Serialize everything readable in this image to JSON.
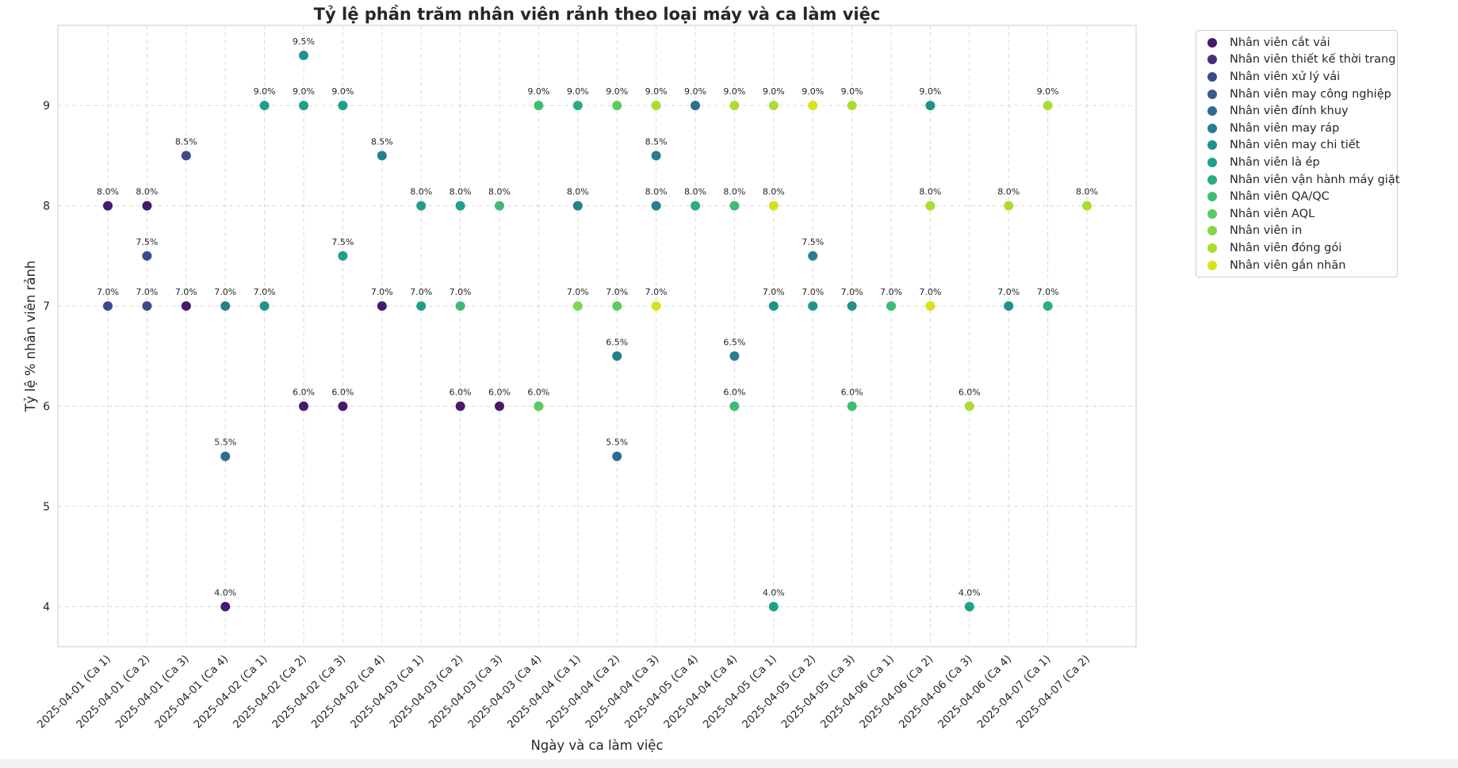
{
  "chart_data": {
    "type": "scatter",
    "title": "Tỷ lệ phần trăm nhân viên rảnh theo loại máy và ca làm việc",
    "xlabel": "Ngày và ca làm việc",
    "ylabel": "Tỷ lệ % nhân viên rảnh",
    "ylim": [
      3.6,
      9.8
    ],
    "yticks": [
      4,
      5,
      6,
      7,
      8,
      9
    ],
    "grid": true,
    "legend_placement": "outside upper right",
    "categories": [
      "2025-04-01 (Ca 1)",
      "2025-04-01 (Ca 2)",
      "2025-04-01 (Ca 3)",
      "2025-04-01 (Ca 4)",
      "2025-04-02 (Ca 1)",
      "2025-04-02 (Ca 2)",
      "2025-04-02 (Ca 3)",
      "2025-04-02 (Ca 4)",
      "2025-04-03 (Ca 1)",
      "2025-04-03 (Ca 2)",
      "2025-04-03 (Ca 3)",
      "2025-04-03 (Ca 4)",
      "2025-04-04 (Ca 1)",
      "2025-04-04 (Ca 2)",
      "2025-04-04 (Ca 3)",
      "2025-04-05 (Ca 4)",
      "2025-04-04 (Ca 4)",
      "2025-04-05 (Ca 1)",
      "2025-04-05 (Ca 2)",
      "2025-04-05 (Ca 3)",
      "2025-04-06 (Ca 1)",
      "2025-04-06 (Ca 2)",
      "2025-04-06 (Ca 3)",
      "2025-04-06 (Ca 4)",
      "2025-04-07 (Ca 1)",
      "2025-04-07 (Ca 2)"
    ],
    "series": [
      {
        "name": "Nhân viên cắt vải",
        "color": "#481a6c",
        "points": [
          [
            0,
            8.0
          ],
          [
            1,
            8.0
          ],
          [
            2,
            7.0
          ],
          [
            3,
            4.0
          ],
          [
            5,
            6.0
          ],
          [
            6,
            6.0
          ],
          [
            7,
            7.0
          ],
          [
            9,
            6.0
          ],
          [
            10,
            6.0
          ]
        ]
      },
      {
        "name": "Nhân viên thiết kế thời trang",
        "color": "#472f7d",
        "points": []
      },
      {
        "name": "Nhân viên xử lý vải",
        "color": "#3e4a89",
        "points": [
          [
            0,
            7.0
          ],
          [
            1,
            7.0
          ],
          [
            1,
            7.5
          ],
          [
            2,
            8.5
          ]
        ]
      },
      {
        "name": "Nhân viên may công nghiệp",
        "color": "#375b8d",
        "points": []
      },
      {
        "name": "Nhân viên đính khuy",
        "color": "#2e6d8e",
        "points": [
          [
            3,
            5.5
          ],
          [
            13,
            5.5
          ],
          [
            15,
            9.0
          ]
        ]
      },
      {
        "name": "Nhân viên may ráp",
        "color": "#277f8e",
        "points": [
          [
            3,
            7.0
          ],
          [
            7,
            8.5
          ],
          [
            12,
            8.0
          ],
          [
            13,
            6.5
          ],
          [
            14,
            8.5
          ],
          [
            14,
            8.0
          ],
          [
            16,
            6.5
          ],
          [
            18,
            7.5
          ]
        ]
      },
      {
        "name": "Nhân viên may chi tiết",
        "color": "#21918c",
        "points": [
          [
            4,
            7.0
          ],
          [
            5,
            9.5
          ],
          [
            17,
            7.0
          ],
          [
            18,
            7.0
          ],
          [
            19,
            7.0
          ],
          [
            21,
            9.0
          ],
          [
            23,
            7.0
          ]
        ]
      },
      {
        "name": "Nhân viên là ép",
        "color": "#1fa088",
        "points": [
          [
            4,
            9.0
          ],
          [
            5,
            9.0
          ],
          [
            6,
            9.0
          ],
          [
            6,
            7.5
          ],
          [
            8,
            8.0
          ],
          [
            8,
            7.0
          ],
          [
            9,
            8.0
          ],
          [
            17,
            4.0
          ],
          [
            22,
            4.0
          ]
        ]
      },
      {
        "name": "Nhân viên vận hành máy giặt",
        "color": "#28ae80",
        "points": [
          [
            12,
            9.0
          ],
          [
            15,
            8.0
          ],
          [
            24,
            7.0
          ]
        ]
      },
      {
        "name": "Nhân viên QA/QC",
        "color": "#3fbc73",
        "points": [
          [
            9,
            7.0
          ],
          [
            10,
            8.0
          ],
          [
            11,
            9.0
          ],
          [
            11,
            6.0
          ],
          [
            16,
            8.0
          ],
          [
            16,
            6.0
          ],
          [
            19,
            6.0
          ],
          [
            20,
            7.0
          ]
        ]
      },
      {
        "name": "Nhân viên AQL",
        "color": "#5ec962",
        "points": [
          [
            11,
            6.0
          ],
          [
            13,
            9.0
          ],
          [
            13,
            7.0
          ]
        ]
      },
      {
        "name": "Nhân viên in",
        "color": "#84d44b",
        "points": [
          [
            12,
            7.0
          ]
        ]
      },
      {
        "name": "Nhân viên đóng gói",
        "color": "#addc30",
        "points": [
          [
            14,
            9.0
          ],
          [
            16,
            9.0
          ],
          [
            17,
            9.0
          ],
          [
            19,
            9.0
          ],
          [
            21,
            8.0
          ],
          [
            22,
            6.0
          ],
          [
            23,
            8.0
          ],
          [
            24,
            9.0
          ],
          [
            25,
            8.0
          ]
        ]
      },
      {
        "name": "Nhân viên gắn nhãn",
        "color": "#d8e219",
        "points": [
          [
            14,
            7.0
          ],
          [
            17,
            8.0
          ],
          [
            18,
            9.0
          ],
          [
            21,
            7.0
          ]
        ]
      }
    ]
  }
}
